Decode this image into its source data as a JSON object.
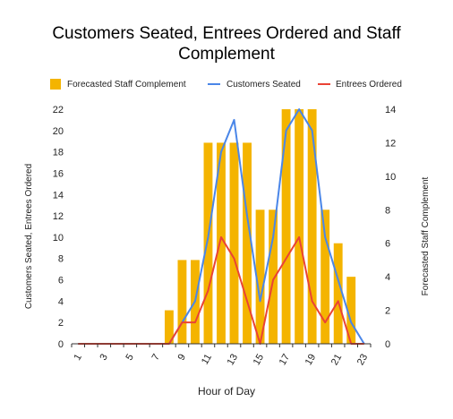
{
  "chart_data": {
    "type": "bar",
    "title_line1": "Customers Seated, Entrees Ordered and Staff",
    "title_line2": "Complement",
    "xlabel": "Hour of Day",
    "ylabel_left": "Customers Seated, Entrees Ordered",
    "ylabel_right": "Forecasted Staff Complement",
    "x": [
      1,
      2,
      3,
      4,
      5,
      6,
      7,
      8,
      9,
      10,
      11,
      12,
      13,
      14,
      15,
      16,
      17,
      18,
      19,
      20,
      21,
      22,
      23
    ],
    "x_tick_labels": [
      "1",
      "3",
      "5",
      "7",
      "9",
      "11",
      "13",
      "15",
      "17",
      "19",
      "21",
      "23"
    ],
    "y_left_ticks": [
      "0",
      "2",
      "4",
      "6",
      "8",
      "10",
      "12",
      "14",
      "16",
      "18",
      "20",
      "22"
    ],
    "y_right_ticks": [
      "0",
      "2",
      "4",
      "6",
      "8",
      "10",
      "12",
      "14"
    ],
    "ylim_left": [
      0,
      22
    ],
    "ylim_right": [
      0,
      14
    ],
    "legend_position": "top",
    "grid": false,
    "series": [
      {
        "name": "Forecasted Staff Complement",
        "type": "bar",
        "axis": "right",
        "color": "#f4b400",
        "values": [
          0,
          0,
          0,
          0,
          0,
          0,
          0,
          2,
          5,
          5,
          12,
          12,
          12,
          12,
          8,
          8,
          14,
          14,
          14,
          8,
          6,
          4,
          0
        ]
      },
      {
        "name": "Customers Seated",
        "type": "line",
        "axis": "left",
        "color": "#4a86e8",
        "values": [
          0,
          0,
          0,
          0,
          0,
          0,
          0,
          0,
          2,
          4,
          10,
          18,
          21,
          12,
          4,
          10,
          20,
          22,
          20,
          10,
          6,
          2,
          0
        ]
      },
      {
        "name": "Entrees Ordered",
        "type": "line",
        "axis": "left",
        "color": "#ea4335",
        "values": [
          0,
          0,
          0,
          0,
          0,
          0,
          0,
          0,
          2,
          2,
          5,
          10,
          8,
          4,
          0,
          6,
          8,
          10,
          4,
          2,
          4,
          0,
          0
        ]
      }
    ]
  }
}
